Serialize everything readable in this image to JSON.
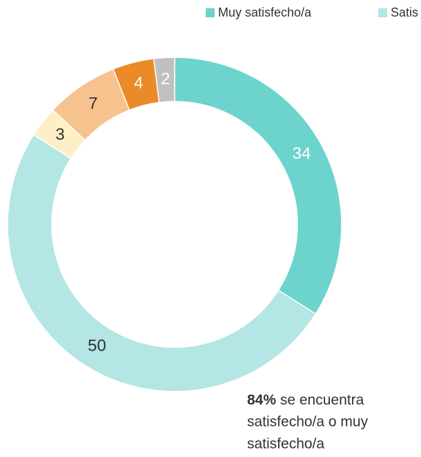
{
  "chart_data": {
    "type": "donut",
    "categories": [
      "Muy satisfecho/a",
      "Satis",
      null,
      null,
      null,
      null
    ],
    "values": [
      34,
      50,
      3,
      7,
      4,
      2
    ],
    "colors": [
      "#6dd3cd",
      "#b3e6e4",
      "#fdf0c6",
      "#f6c38e",
      "#eb8a28",
      "#c0c0c0"
    ],
    "label_colors": [
      "#ffffff",
      "#333333",
      "#333333",
      "#333333",
      "#ffffff",
      "#ffffff"
    ],
    "legend": "top",
    "annotation": {
      "highlight": "84%",
      "lines": [
        " se encuentra",
        "satisfecho/a o muy",
        "satisfecho/a"
      ]
    }
  }
}
